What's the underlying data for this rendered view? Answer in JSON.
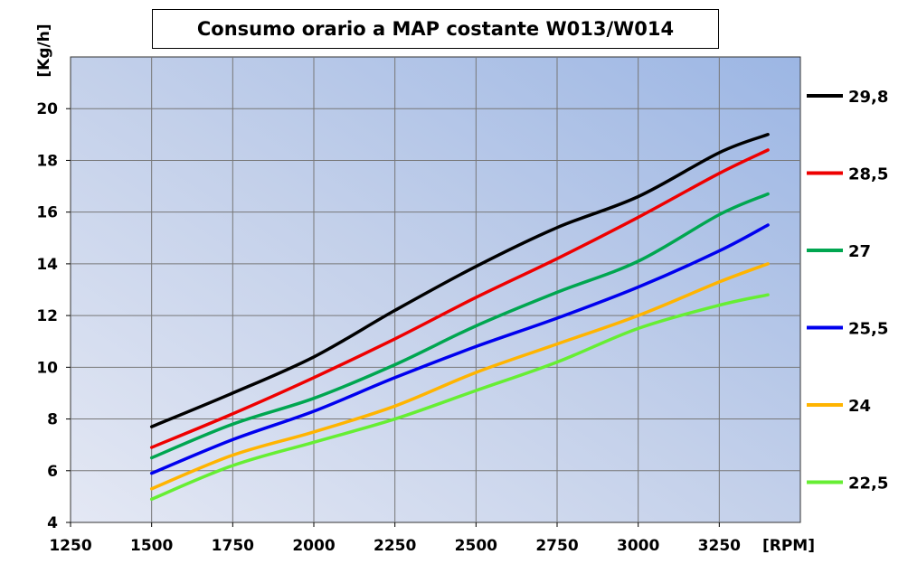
{
  "chart_data": {
    "type": "line",
    "title": "Consumo orario a MAP costante W013/W014",
    "xlabel": "[RPM]",
    "ylabel": "[Kg/h]",
    "xlim": [
      1250,
      3500
    ],
    "ylim": [
      4,
      22
    ],
    "x_ticks": [
      1250,
      1500,
      1750,
      2000,
      2250,
      2500,
      2750,
      3000,
      3250
    ],
    "y_ticks": [
      4,
      6,
      8,
      10,
      12,
      14,
      16,
      18,
      20
    ],
    "grid": true,
    "legend_position": "right",
    "x": [
      1500,
      1750,
      2000,
      2250,
      2500,
      2750,
      3000,
      3250,
      3400
    ],
    "series": [
      {
        "name": "29,8",
        "color": "#000000",
        "values": [
          7.7,
          9.0,
          10.4,
          12.2,
          13.9,
          15.4,
          16.6,
          18.3,
          19.0
        ]
      },
      {
        "name": "28,5",
        "color": "#ee0000",
        "values": [
          6.9,
          8.2,
          9.6,
          11.1,
          12.7,
          14.2,
          15.8,
          17.5,
          18.4
        ]
      },
      {
        "name": "27",
        "color": "#00a650",
        "values": [
          6.5,
          7.8,
          8.8,
          10.1,
          11.6,
          12.9,
          14.1,
          15.9,
          16.7
        ]
      },
      {
        "name": "25,5",
        "color": "#0000ee",
        "values": [
          5.9,
          7.2,
          8.3,
          9.6,
          10.8,
          11.9,
          13.1,
          14.5,
          15.5
        ]
      },
      {
        "name": "24",
        "color": "#ffb400",
        "values": [
          5.3,
          6.6,
          7.5,
          8.5,
          9.8,
          10.9,
          12.0,
          13.3,
          14.0
        ]
      },
      {
        "name": "22,5",
        "color": "#66ee33",
        "values": [
          4.9,
          6.2,
          7.1,
          8.0,
          9.1,
          10.2,
          11.5,
          12.4,
          12.8
        ]
      }
    ]
  }
}
